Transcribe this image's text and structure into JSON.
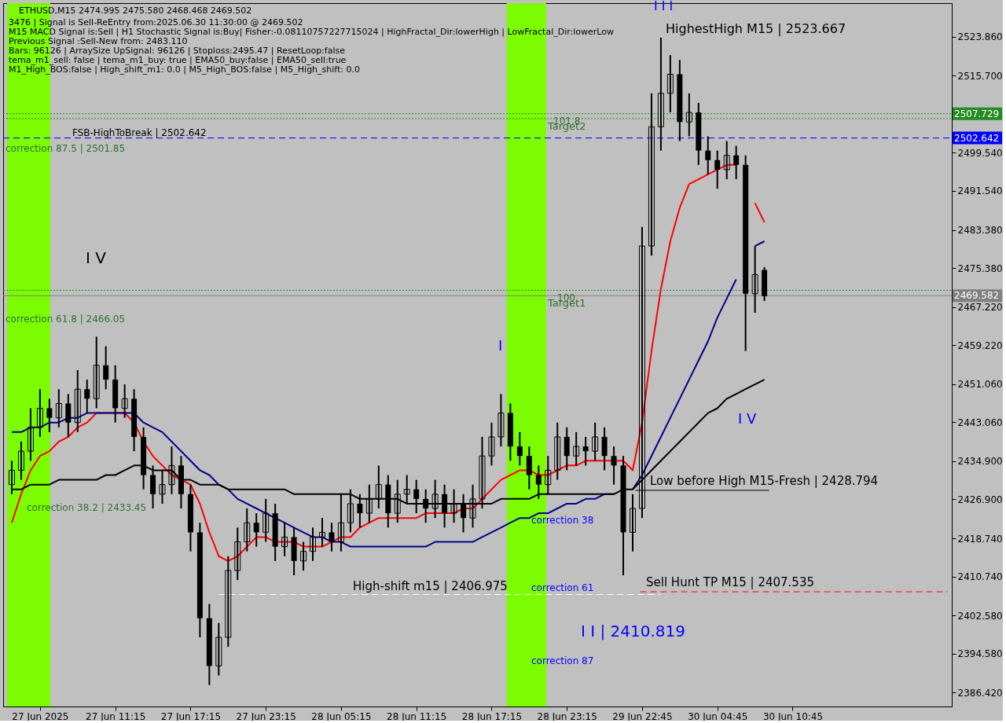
{
  "chart_data": {
    "type": "candlestick",
    "title": "ETHUSD,M15  2474.995 2475.580 2468.468 2469.502",
    "categories": [
      null,
      null,
      null,
      "27 Jun 2025",
      null,
      null,
      null,
      null,
      null,
      null,
      null,
      "27 Jun 11:15",
      null,
      null,
      null,
      null,
      null,
      null,
      null,
      "27 Jun 17:15",
      null,
      null,
      null,
      null,
      null,
      null,
      null,
      "27 Jun 23:15",
      null,
      null,
      null,
      null,
      null,
      null,
      null,
      "28 Jun 05:15",
      null,
      null,
      null,
      null,
      null,
      null,
      null,
      "28 Jun 11:15",
      null,
      null,
      null,
      null,
      null,
      null,
      null,
      "28 Jun 17:15",
      null,
      null,
      null,
      null,
      null,
      null,
      null,
      "28 Jun 23:15",
      null,
      null,
      null,
      null,
      null,
      null,
      null,
      "29 Jun 22:45",
      null,
      null,
      null,
      null,
      null,
      null,
      null,
      "30 Jun 04:45",
      null,
      null,
      null,
      null,
      null,
      null,
      null,
      "30 Jun 10:45",
      null,
      null,
      null,
      null,
      null,
      null,
      null,
      null,
      null,
      null,
      null,
      null,
      null,
      null,
      null,
      null
    ],
    "ohlc": [
      [
        2430,
        2435,
        2428,
        2433
      ],
      [
        2433,
        2439,
        2431,
        2437
      ],
      [
        2437,
        2446,
        2435,
        2442
      ],
      [
        2442,
        2450,
        2440,
        2446
      ],
      [
        2446,
        2448,
        2441,
        2444
      ],
      [
        2444,
        2450,
        2442,
        2447
      ],
      [
        2447,
        2449,
        2440,
        2443
      ],
      [
        2443,
        2454,
        2441,
        2450
      ],
      [
        2450,
        2452,
        2445,
        2448
      ],
      [
        2448,
        2461,
        2446,
        2455
      ],
      [
        2455,
        2459,
        2450,
        2452
      ],
      [
        2452,
        2455,
        2443,
        2446
      ],
      [
        2446,
        2451,
        2444,
        2448
      ],
      [
        2448,
        2450,
        2437,
        2440
      ],
      [
        2440,
        2442,
        2429,
        2432
      ],
      [
        2432,
        2434,
        2425,
        2428
      ],
      [
        2428,
        2433,
        2426,
        2430
      ],
      [
        2430,
        2438,
        2428,
        2434
      ],
      [
        2434,
        2436,
        2425,
        2428
      ],
      [
        2428,
        2430,
        2416,
        2420
      ],
      [
        2420,
        2422,
        2398,
        2402
      ],
      [
        2402,
        2405,
        2388,
        2392
      ],
      [
        2392,
        2401,
        2390,
        2398
      ],
      [
        2398,
        2415,
        2396,
        2412
      ],
      [
        2412,
        2421,
        2410,
        2418
      ],
      [
        2418,
        2425,
        2416,
        2422
      ],
      [
        2422,
        2424,
        2417,
        2420
      ],
      [
        2420,
        2427,
        2418,
        2424
      ],
      [
        2424,
        2426,
        2414,
        2417
      ],
      [
        2417,
        2422,
        2415,
        2419
      ],
      [
        2419,
        2421,
        2411,
        2414
      ],
      [
        2414,
        2418,
        2412,
        2416
      ],
      [
        2416,
        2421,
        2414,
        2419
      ],
      [
        2419,
        2423,
        2417,
        2420
      ],
      [
        2420,
        2422,
        2416,
        2418
      ],
      [
        2418,
        2428,
        2416,
        2422
      ],
      [
        2422,
        2429,
        2420,
        2426
      ],
      [
        2426,
        2428,
        2421,
        2424
      ],
      [
        2424,
        2430,
        2422,
        2427
      ],
      [
        2427,
        2434,
        2425,
        2430
      ],
      [
        2430,
        2432,
        2421,
        2424
      ],
      [
        2424,
        2431,
        2422,
        2428
      ],
      [
        2428,
        2432,
        2426,
        2429
      ],
      [
        2429,
        2431,
        2424,
        2427
      ],
      [
        2427,
        2429,
        2422,
        2425
      ],
      [
        2425,
        2431,
        2423,
        2428
      ],
      [
        2428,
        2430,
        2421,
        2424
      ],
      [
        2424,
        2429,
        2422,
        2426
      ],
      [
        2426,
        2428,
        2420,
        2423
      ],
      [
        2423,
        2430,
        2421,
        2427
      ],
      [
        2427,
        2440,
        2425,
        2436
      ],
      [
        2436,
        2443,
        2434,
        2440
      ],
      [
        2440,
        2449,
        2438,
        2445
      ],
      [
        2445,
        2447,
        2435,
        2438
      ],
      [
        2438,
        2441,
        2434,
        2436
      ],
      [
        2436,
        2438,
        2429,
        2432
      ],
      [
        2432,
        2434,
        2427,
        2430
      ],
      [
        2430,
        2436,
        2428,
        2433
      ],
      [
        2433,
        2443,
        2431,
        2440
      ],
      [
        2440,
        2442,
        2433,
        2436
      ],
      [
        2436,
        2441,
        2434,
        2438
      ],
      [
        2438,
        2440,
        2434,
        2437
      ],
      [
        2437,
        2443,
        2435,
        2440
      ],
      [
        2440,
        2442,
        2433,
        2436
      ],
      [
        2436,
        2438,
        2430,
        2434
      ],
      [
        2434,
        2436,
        2411,
        2420
      ],
      [
        2420,
        2428,
        2416,
        2425
      ],
      [
        2425,
        2484,
        2423,
        2480
      ],
      [
        2480,
        2512,
        2478,
        2505
      ],
      [
        2505,
        2523.667,
        2500,
        2512
      ],
      [
        2512,
        2520,
        2508,
        2516
      ],
      [
        2516,
        2519,
        2502,
        2506
      ],
      [
        2506,
        2512,
        2503,
        2508
      ],
      [
        2508,
        2510,
        2497,
        2500
      ],
      [
        2500,
        2503,
        2495,
        2498
      ],
      [
        2498,
        2500,
        2492,
        2496
      ],
      [
        2496,
        2502,
        2494,
        2499
      ],
      [
        2499,
        2501,
        2494,
        2497
      ],
      [
        2497,
        2499,
        2458,
        2470
      ],
      [
        2470,
        2480,
        2466,
        2474
      ],
      [
        2474.995,
        2475.58,
        2468.468,
        2469.502
      ],
      null,
      null,
      null,
      null,
      null,
      null,
      null,
      null,
      null,
      null,
      null,
      null,
      null,
      null,
      null,
      null,
      null,
      null,
      null
    ],
    "series": [
      {
        "type": "line",
        "color": "#ff0000",
        "values": [
          2422,
          2428,
          2433,
          2436,
          2437,
          2439,
          2440,
          2442,
          2443,
          2445,
          2445,
          2445,
          2445,
          2443,
          2439,
          2436,
          2434,
          2432,
          2431,
          2430,
          2426,
          2420,
          2415,
          2414,
          2415,
          2417,
          2419,
          2419,
          2418,
          2418,
          2418,
          2417,
          2417,
          2417,
          2418,
          2419,
          2419,
          2421,
          2422,
          2423,
          2423,
          2423,
          2423,
          2423,
          2424,
          2424,
          2424,
          2424,
          2425,
          2425,
          2427,
          2429,
          2431,
          2432,
          2433,
          2433,
          2432,
          2432,
          2433,
          2434,
          2434,
          2435,
          2435,
          2435,
          2435,
          2435,
          2433,
          2443,
          2458,
          2471,
          2481,
          2488,
          2493,
          2494,
          2495,
          2496,
          2497,
          2497,
          null,
          2489,
          2485,
          null,
          null,
          null,
          null,
          null,
          null,
          null,
          null,
          null,
          null,
          null,
          null,
          null,
          null,
          null,
          null,
          null,
          null,
          null
        ]
      },
      {
        "type": "line",
        "color": "#00008b",
        "values": [
          2441,
          2441,
          2442,
          2442,
          2443,
          2443,
          2444,
          2444,
          2445,
          2445,
          2445,
          2445,
          2445,
          2445,
          2443,
          2442,
          2441,
          2439,
          2437,
          2435,
          2433,
          2432,
          2430,
          2429,
          2427,
          2426,
          2425,
          2424,
          2423,
          2422,
          2421,
          2420,
          2419,
          2419,
          2418,
          2418,
          2417,
          2417,
          2417,
          2417,
          2417,
          2417,
          2417,
          2417,
          2417,
          2418,
          2418,
          2418,
          2418,
          2418,
          2419,
          2420,
          2421,
          2422,
          2423,
          2423,
          2424,
          2424,
          2425,
          2426,
          2426,
          2427,
          2427,
          2428,
          2428,
          null,
          2429,
          2432,
          2436,
          2440,
          2444,
          2448,
          2452,
          2456,
          2460,
          2465,
          2469,
          2473,
          null,
          2480,
          2481,
          null,
          null,
          null,
          null,
          null,
          null,
          null,
          null,
          null,
          null,
          null,
          null,
          null,
          null,
          null,
          null,
          null,
          null,
          null
        ]
      },
      {
        "type": "line",
        "color": "#000000",
        "values": [
          2429,
          2429,
          2430,
          2430,
          2430,
          2431,
          2431,
          2431,
          2431,
          2431,
          2432,
          2432,
          2433,
          2434,
          2434,
          2433,
          2433,
          2433,
          2431,
          2431,
          2430,
          2430,
          2430,
          2429,
          2429,
          2429,
          2429,
          2429,
          2429,
          2429,
          2428,
          2428,
          2428,
          2428,
          2428,
          2428,
          2428,
          2427,
          2427,
          2427,
          2427,
          2427,
          2426,
          2426,
          2426,
          2426,
          2426,
          2426,
          2426,
          2426,
          2426,
          2426,
          2427,
          2427,
          2427,
          2427,
          2428,
          2428,
          2428,
          2428,
          2428,
          2428,
          2428,
          2428,
          2428,
          2429,
          2429,
          2431,
          2433,
          2435,
          2437,
          2439,
          2441,
          2443,
          2445,
          2446,
          2448,
          2449,
          2450,
          2451,
          2452,
          null,
          null,
          null,
          null,
          null,
          null,
          null,
          null,
          null,
          null,
          null,
          null,
          null,
          null,
          null,
          null,
          null,
          null,
          null
        ]
      }
    ],
    "ylim": [
      2383.5,
      2530.9
    ],
    "yticks": [
      {
        "value": 2386.42,
        "label": "2386.420"
      },
      {
        "value": 2394.58,
        "label": "2394.580"
      },
      {
        "value": 2402.58,
        "label": "2402.580"
      },
      {
        "value": 2410.74,
        "label": "2410.740"
      },
      {
        "value": 2418.74,
        "label": "2418.740"
      },
      {
        "value": 2426.9,
        "label": "2426.900"
      },
      {
        "value": 2434.9,
        "label": "2434.900"
      },
      {
        "value": 2443.06,
        "label": "2443.060"
      },
      {
        "value": 2451.06,
        "label": "2451.060"
      },
      {
        "value": 2459.22,
        "label": "2459.220"
      },
      {
        "value": 2467.22,
        "label": "2467.220"
      },
      {
        "value": 2475.38,
        "label": "2475.380"
      },
      {
        "value": 2483.38,
        "label": "2483.380"
      },
      {
        "value": 2491.54,
        "label": "2491.540"
      },
      {
        "value": 2499.54,
        "label": "2499.540"
      },
      {
        "value": 2515.7,
        "label": "2515.700"
      },
      {
        "value": 2523.86,
        "label": "2523.860"
      }
    ],
    "grid": false,
    "ref_lines": [
      {
        "axis": "y",
        "value": 2507.729,
        "label": "2507.729",
        "color": "#228b22",
        "line_style": "dotted"
      },
      {
        "axis": "y",
        "value": 2506.7,
        "color": "#228b22",
        "line_style": "dotted"
      },
      {
        "axis": "y",
        "value": 2502.642,
        "label": "2502.642",
        "color": "#0000ff",
        "line_style": "dashed"
      },
      {
        "axis": "y",
        "value": 2470.714,
        "color": "#228b22",
        "line_style": "dotted"
      },
      {
        "axis": "y",
        "value": 2469.582,
        "label": "2469.582",
        "color": "#808080",
        "line_style": "solid"
      },
      {
        "axis": "y",
        "value": 2428.794,
        "label": "Low before High   M15-Fresh | 2428.794",
        "color": "#000000",
        "line_style": "solid"
      },
      {
        "axis": "y",
        "value": 2407.535,
        "label": "Sell Hunt TP M15 | 2407.535",
        "color": "#ff0000",
        "line_style": "dashed"
      },
      {
        "axis": "y",
        "value": 2406.975,
        "label": "High-shift m15 | 2406.975",
        "color": "#ffffff",
        "line_style": "dashed"
      }
    ],
    "annotations": [
      "3476 | Signal is Sell-ReEntry from:2025.06.30 11:30:00 @ 2469.502",
      "M15 MACD Signal is:Sell | H1 Stochastic Signal is:Buy| Fisher:-0.08110757227715024 | HighFractal_Dir:lowerHigh | LowFractal_Dir:lowerLow",
      "Previous Signal :Sell-New from: 2483.110",
      "Bars: 96126 | ArraySize UpSignal: 96126 | Stoploss:2495.47 | ResetLoop:false",
      "tema_m1_sell: false | tema_m1_buy: true | EMA50_buy:false | EMA50_sell:true",
      "M1_High_BOS:false | High_shift_m1: 0.0 | M5_High_BOS:false | M5_High_shift: 0.0",
      "I V",
      "correction 87.5 | 2501.85",
      "correction 61.8 | 2466.05",
      "correction 38.2 | 2433.45",
      "I",
      "correction 38",
      "correction 61",
      "correction 87",
      "I I | 2410.819",
      "I V",
      "I I I",
      "HighestHigh   M15 | 2523.667",
      "101.8",
      "Target2",
      "100",
      "Target1",
      "FSB-HighToBreak | 2502.642"
    ]
  }
}
